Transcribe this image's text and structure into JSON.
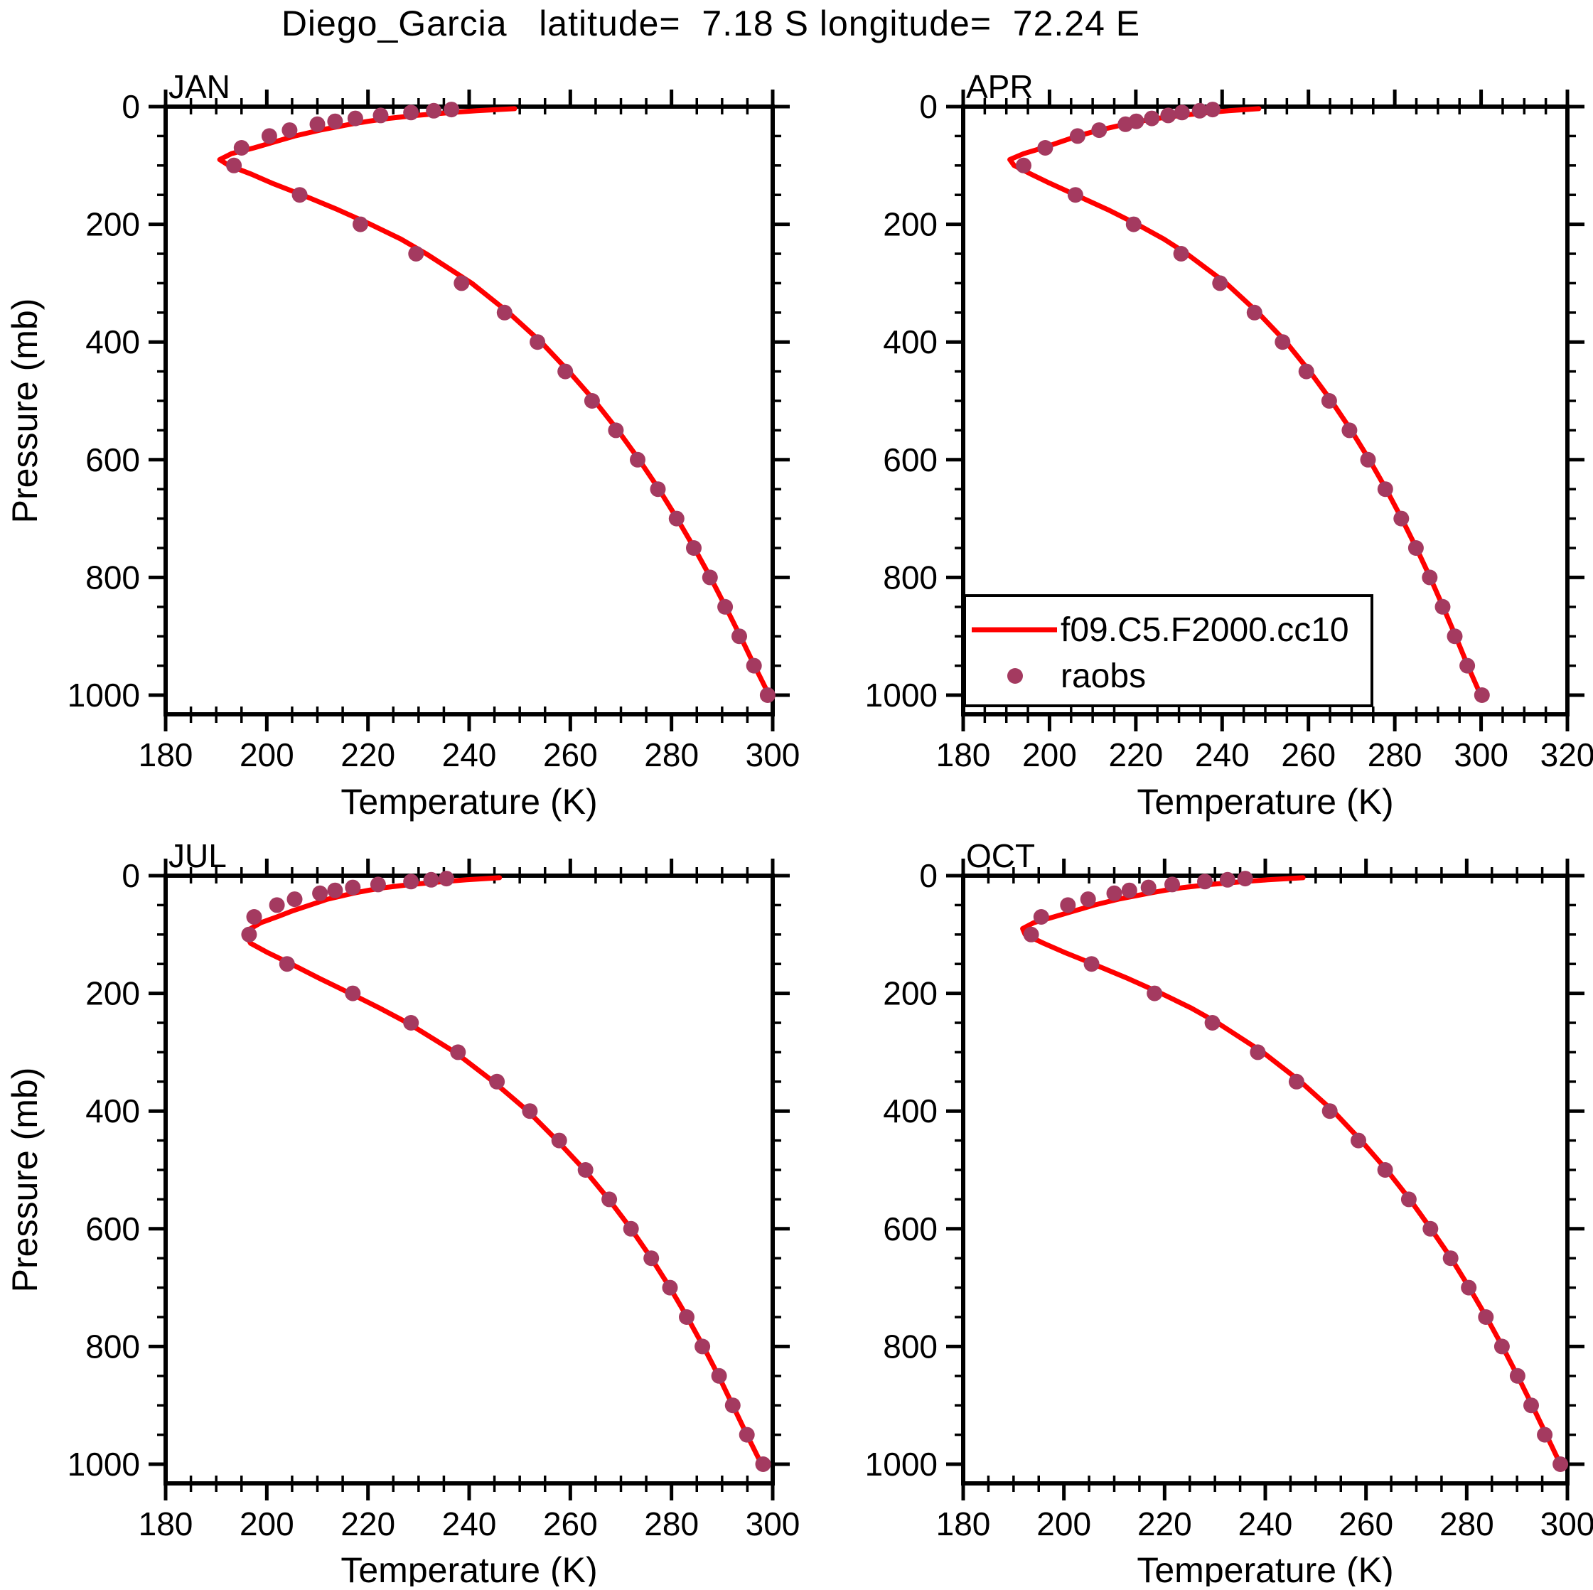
{
  "title": "Diego_Garcia   latitude=  7.18 S longitude=  72.24 E",
  "axes": {
    "x_label": "Temperature (K)",
    "y_label": "Pressure (mb)"
  },
  "colors": {
    "model_line": "#FF0000",
    "raobs_dot": "#A43A60",
    "axis": "#000000",
    "background": "#FFFFFF"
  },
  "legend": {
    "entries": [
      {
        "type": "line",
        "label": "f09.C5.F2000.cc10",
        "color": "#FF0000"
      },
      {
        "type": "dot",
        "label": "raobs",
        "color": "#A43A60"
      }
    ]
  },
  "chart_data": [
    {
      "type": "line",
      "panel": "JAN",
      "xlabel": "Temperature (K)",
      "ylabel": "Pressure (mb)",
      "x_range": [
        180,
        300
      ],
      "x_ticks": [
        180,
        200,
        220,
        240,
        260,
        280,
        300
      ],
      "x_minor_step": 5,
      "y_range": [
        0,
        1000
      ],
      "y_ticks": [
        0,
        200,
        400,
        600,
        800,
        1000
      ],
      "y_minor_step": 50,
      "y_axis_reversed": true,
      "series": [
        {
          "name": "f09.C5.F2000.cc10",
          "style": "line",
          "color": "#FF0000",
          "pressure_mb": [
            3.5,
            7,
            10,
            15,
            20,
            25,
            30,
            40,
            50,
            60,
            70,
            80,
            90,
            100,
            115,
            130,
            150,
            175,
            200,
            225,
            250,
            300,
            350,
            400,
            450,
            500,
            550,
            600,
            650,
            700,
            750,
            800,
            850,
            900,
            950,
            1000
          ],
          "temperature_k": [
            249.0,
            241.5,
            236.5,
            229.5,
            224.0,
            220.0,
            216.5,
            210.5,
            205.5,
            201.5,
            197.5,
            193.0,
            190.7,
            192.5,
            197.0,
            201.0,
            207.0,
            214.0,
            220.5,
            226.5,
            231.5,
            240.5,
            247.8,
            254.2,
            259.7,
            264.8,
            269.4,
            273.6,
            277.5,
            281.1,
            284.5,
            287.7,
            290.7,
            293.6,
            296.4,
            299.3
          ]
        },
        {
          "name": "raobs",
          "style": "scatter",
          "color": "#A43A60",
          "pressure_mb": [
            5,
            7,
            10,
            15,
            20,
            25,
            30,
            40,
            50,
            70,
            100,
            150,
            200,
            250,
            300,
            350,
            400,
            450,
            500,
            550,
            600,
            650,
            700,
            750,
            800,
            850,
            900,
            950,
            1000
          ],
          "temperature_k": [
            236.5,
            233.0,
            228.5,
            222.5,
            217.5,
            213.5,
            210.0,
            204.5,
            200.5,
            195.0,
            193.5,
            206.5,
            218.5,
            229.5,
            238.5,
            247.0,
            253.5,
            259.0,
            264.3,
            269.0,
            273.3,
            277.3,
            281.0,
            284.4,
            287.6,
            290.6,
            293.4,
            296.3,
            299.0
          ]
        }
      ]
    },
    {
      "type": "line",
      "panel": "APR",
      "xlabel": "Temperature (K)",
      "ylabel": "Pressure (mb)",
      "x_range": [
        180,
        320
      ],
      "x_ticks": [
        180,
        200,
        220,
        240,
        260,
        280,
        300,
        320
      ],
      "x_minor_step": 5,
      "y_range": [
        0,
        1000
      ],
      "y_ticks": [
        0,
        200,
        400,
        600,
        800,
        1000
      ],
      "y_minor_step": 50,
      "y_axis_reversed": true,
      "series": [
        {
          "name": "f09.C5.F2000.cc10",
          "style": "line",
          "color": "#FF0000",
          "pressure_mb": [
            3.5,
            7,
            10,
            15,
            20,
            25,
            30,
            40,
            50,
            60,
            70,
            80,
            90,
            100,
            115,
            130,
            150,
            175,
            200,
            225,
            250,
            300,
            350,
            400,
            450,
            500,
            550,
            600,
            650,
            700,
            750,
            800,
            850,
            900,
            950,
            1000
          ],
          "temperature_k": [
            248.5,
            241.5,
            237.0,
            230.5,
            225.0,
            221.0,
            217.5,
            211.5,
            206.5,
            202.5,
            198.5,
            194.0,
            190.8,
            191.8,
            195.8,
            200.0,
            206.0,
            213.5,
            220.3,
            226.5,
            231.8,
            240.9,
            248.3,
            254.8,
            260.3,
            265.3,
            269.9,
            274.1,
            278.0,
            281.6,
            285.0,
            288.2,
            291.2,
            294.1,
            296.9,
            299.9
          ]
        },
        {
          "name": "raobs",
          "style": "scatter",
          "color": "#A43A60",
          "pressure_mb": [
            5,
            7,
            10,
            15,
            20,
            25,
            30,
            40,
            50,
            70,
            100,
            150,
            200,
            250,
            300,
            350,
            400,
            450,
            500,
            550,
            600,
            650,
            700,
            750,
            800,
            850,
            900,
            950,
            1000
          ],
          "temperature_k": [
            237.8,
            234.8,
            230.7,
            227.5,
            223.7,
            220.1,
            217.6,
            211.5,
            206.5,
            199.0,
            194.0,
            206.0,
            219.5,
            230.5,
            239.5,
            247.5,
            254.0,
            259.5,
            264.8,
            269.5,
            273.8,
            277.8,
            281.5,
            284.9,
            288.1,
            291.1,
            293.9,
            296.8,
            300.2
          ]
        }
      ]
    },
    {
      "type": "line",
      "panel": "JUL",
      "xlabel": "Temperature (K)",
      "ylabel": "Pressure (mb)",
      "x_range": [
        180,
        300
      ],
      "x_ticks": [
        180,
        200,
        220,
        240,
        260,
        280,
        300
      ],
      "x_minor_step": 5,
      "y_range": [
        0,
        1000
      ],
      "y_ticks": [
        0,
        200,
        400,
        600,
        800,
        1000
      ],
      "y_minor_step": 50,
      "y_axis_reversed": true,
      "series": [
        {
          "name": "f09.C5.F2000.cc10",
          "style": "line",
          "color": "#FF0000",
          "pressure_mb": [
            3.5,
            7,
            10,
            15,
            20,
            25,
            30,
            40,
            50,
            60,
            70,
            80,
            90,
            100,
            115,
            130,
            150,
            175,
            200,
            225,
            250,
            300,
            350,
            400,
            450,
            500,
            550,
            600,
            650,
            700,
            750,
            800,
            850,
            900,
            950,
            1000
          ],
          "temperature_k": [
            246.0,
            239.5,
            235.0,
            228.5,
            223.5,
            220.0,
            217.0,
            212.0,
            208.5,
            205.0,
            202.0,
            198.8,
            196.8,
            195.8,
            196.8,
            200.0,
            204.8,
            210.5,
            216.5,
            222.3,
            227.8,
            237.2,
            244.8,
            251.6,
            257.4,
            262.8,
            267.6,
            272.0,
            276.0,
            279.7,
            283.1,
            286.3,
            289.3,
            292.1,
            294.9,
            297.8
          ]
        },
        {
          "name": "raobs",
          "style": "scatter",
          "color": "#A43A60",
          "pressure_mb": [
            5,
            7,
            10,
            15,
            20,
            25,
            30,
            40,
            50,
            70,
            100,
            150,
            200,
            250,
            300,
            350,
            400,
            450,
            500,
            550,
            600,
            650,
            700,
            750,
            800,
            850,
            900,
            950,
            1000
          ],
          "temperature_k": [
            235.5,
            232.5,
            228.5,
            222.0,
            217.0,
            213.5,
            210.5,
            205.5,
            202.0,
            197.5,
            196.5,
            204.0,
            217.0,
            228.5,
            237.8,
            245.5,
            252.0,
            257.8,
            263.0,
            267.7,
            272.0,
            276.0,
            279.7,
            283.0,
            286.1,
            289.4,
            292.1,
            294.9,
            298.1
          ]
        }
      ]
    },
    {
      "type": "line",
      "panel": "OCT",
      "xlabel": "Temperature (K)",
      "ylabel": "Pressure (mb)",
      "x_range": [
        180,
        300
      ],
      "x_ticks": [
        180,
        200,
        220,
        240,
        260,
        280,
        300
      ],
      "x_minor_step": 5,
      "y_range": [
        0,
        1000
      ],
      "y_ticks": [
        0,
        200,
        400,
        600,
        800,
        1000
      ],
      "y_minor_step": 50,
      "y_axis_reversed": true,
      "series": [
        {
          "name": "f09.C5.F2000.cc10",
          "style": "line",
          "color": "#FF0000",
          "pressure_mb": [
            3.5,
            7,
            10,
            15,
            20,
            25,
            30,
            40,
            50,
            60,
            70,
            80,
            90,
            100,
            115,
            130,
            150,
            175,
            200,
            225,
            250,
            300,
            350,
            400,
            450,
            500,
            550,
            600,
            650,
            700,
            750,
            800,
            850,
            900,
            950,
            1000
          ],
          "temperature_k": [
            247.5,
            240.5,
            235.8,
            229.0,
            223.8,
            220.0,
            216.8,
            210.8,
            206.0,
            202.0,
            198.0,
            194.0,
            191.8,
            192.3,
            196.0,
            200.0,
            205.8,
            212.8,
            219.3,
            225.3,
            230.5,
            239.5,
            247.0,
            253.5,
            259.0,
            264.1,
            268.7,
            272.9,
            276.9,
            280.5,
            283.9,
            287.1,
            290.1,
            293.0,
            295.8,
            298.6
          ]
        },
        {
          "name": "raobs",
          "style": "scatter",
          "color": "#A43A60",
          "pressure_mb": [
            5,
            7,
            10,
            15,
            20,
            25,
            30,
            40,
            50,
            70,
            100,
            150,
            200,
            250,
            300,
            350,
            400,
            450,
            500,
            550,
            600,
            650,
            700,
            750,
            800,
            850,
            900,
            950,
            1000
          ],
          "temperature_k": [
            236.0,
            232.5,
            228.0,
            221.5,
            216.8,
            213.0,
            210.0,
            204.8,
            200.8,
            195.5,
            193.5,
            205.5,
            218.0,
            229.5,
            238.5,
            246.2,
            252.8,
            258.5,
            263.8,
            268.5,
            272.8,
            276.8,
            280.4,
            283.8,
            287.0,
            290.1,
            292.8,
            295.5,
            298.6
          ]
        }
      ]
    }
  ]
}
